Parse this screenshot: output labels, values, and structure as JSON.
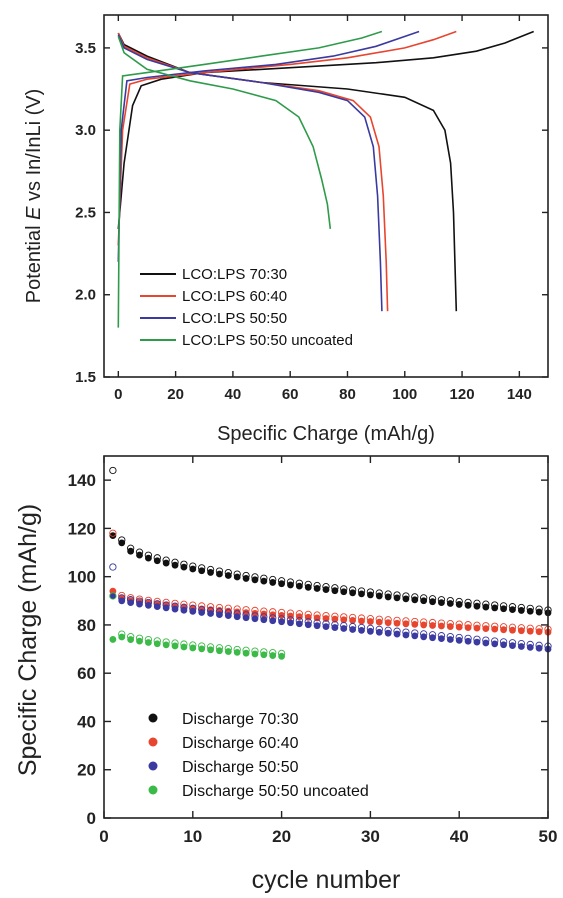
{
  "chart_data": [
    {
      "type": "line",
      "xlabel_prefix": "Specific Charge (mAh/g)",
      "ylabel": {
        "before": "Potential ",
        "italic": "E",
        "after": " vs In/InLi (V)"
      },
      "xlim": [
        -5,
        150
      ],
      "ylim": [
        1.5,
        3.7
      ],
      "xticks": [
        0,
        20,
        40,
        60,
        80,
        100,
        120,
        140
      ],
      "yticks": [
        1.5,
        2.0,
        2.5,
        3.0,
        3.5
      ],
      "ytick_labels": [
        "1.5",
        "2.0",
        "2.5",
        "3.0",
        "3.5"
      ],
      "legend_position": "lower-left",
      "series": [
        {
          "name": "LCO:LPS 70:30",
          "color": "#111111",
          "charge": [
            [
              0,
              2.4
            ],
            [
              2,
              2.8
            ],
            [
              5,
              3.15
            ],
            [
              8,
              3.27
            ],
            [
              15,
              3.31
            ],
            [
              30,
              3.35
            ],
            [
              60,
              3.38
            ],
            [
              90,
              3.41
            ],
            [
              110,
              3.44
            ],
            [
              125,
              3.48
            ],
            [
              135,
              3.53
            ],
            [
              145,
              3.6
            ]
          ],
          "discharge": [
            [
              0,
              3.59
            ],
            [
              2,
              3.52
            ],
            [
              10,
              3.45
            ],
            [
              25,
              3.35
            ],
            [
              50,
              3.29
            ],
            [
              80,
              3.25
            ],
            [
              100,
              3.2
            ],
            [
              110,
              3.12
            ],
            [
              114,
              3.0
            ],
            [
              116,
              2.8
            ],
            [
              117,
              2.5
            ],
            [
              117.5,
              2.2
            ],
            [
              118,
              1.9
            ]
          ]
        },
        {
          "name": "LCO:LPS 60:40",
          "color": "#e8452f",
          "charge": [
            [
              0,
              2.3
            ],
            [
              1.5,
              3.0
            ],
            [
              4,
              3.28
            ],
            [
              10,
              3.31
            ],
            [
              30,
              3.35
            ],
            [
              60,
              3.4
            ],
            [
              80,
              3.44
            ],
            [
              100,
              3.5
            ],
            [
              110,
              3.55
            ],
            [
              118,
              3.6
            ]
          ],
          "discharge": [
            [
              0,
              3.59
            ],
            [
              2,
              3.51
            ],
            [
              10,
              3.44
            ],
            [
              25,
              3.35
            ],
            [
              50,
              3.29
            ],
            [
              70,
              3.24
            ],
            [
              82,
              3.18
            ],
            [
              88,
              3.08
            ],
            [
              91,
              2.9
            ],
            [
              92.5,
              2.6
            ],
            [
              93.5,
              2.2
            ],
            [
              94,
              1.9
            ]
          ]
        },
        {
          "name": "LCO:LPS 50:50",
          "color": "#3a3aa0",
          "charge": [
            [
              0,
              2.2
            ],
            [
              1,
              3.0
            ],
            [
              3,
              3.3
            ],
            [
              10,
              3.32
            ],
            [
              30,
              3.36
            ],
            [
              55,
              3.4
            ],
            [
              75,
              3.45
            ],
            [
              90,
              3.51
            ],
            [
              105,
              3.6
            ]
          ],
          "discharge": [
            [
              0,
              3.58
            ],
            [
              2,
              3.5
            ],
            [
              10,
              3.43
            ],
            [
              25,
              3.35
            ],
            [
              50,
              3.29
            ],
            [
              70,
              3.23
            ],
            [
              80,
              3.18
            ],
            [
              86,
              3.08
            ],
            [
              89,
              2.9
            ],
            [
              90.5,
              2.6
            ],
            [
              91.5,
              2.2
            ],
            [
              92,
              1.9
            ]
          ]
        },
        {
          "name": "LCO:LPS 50:50 uncoated",
          "color": "#2e9b4a",
          "charge": [
            [
              0,
              1.8
            ],
            [
              0.5,
              3.0
            ],
            [
              1.5,
              3.33
            ],
            [
              10,
              3.35
            ],
            [
              30,
              3.4
            ],
            [
              50,
              3.45
            ],
            [
              70,
              3.5
            ],
            [
              85,
              3.56
            ],
            [
              92,
              3.6
            ]
          ],
          "discharge": [
            [
              0,
              3.57
            ],
            [
              2,
              3.47
            ],
            [
              10,
              3.37
            ],
            [
              25,
              3.3
            ],
            [
              40,
              3.25
            ],
            [
              55,
              3.18
            ],
            [
              63,
              3.08
            ],
            [
              68,
              2.9
            ],
            [
              71,
              2.7
            ],
            [
              73,
              2.55
            ],
            [
              74,
              2.4
            ]
          ]
        }
      ]
    },
    {
      "type": "scatter",
      "xlabel": "cycle number",
      "ylabel": "Specific Charge (mAh/g)",
      "xlim": [
        0,
        50
      ],
      "ylim": [
        0,
        150
      ],
      "xticks": [
        0,
        10,
        20,
        30,
        40,
        50
      ],
      "yticks": [
        0,
        20,
        40,
        60,
        80,
        100,
        120,
        140
      ],
      "legend_position": "lower-left",
      "series": [
        {
          "name": "Discharge 70:30",
          "color": "#111111",
          "count": 50,
          "first": 117,
          "second": 114,
          "last": 85,
          "curve": 0.55,
          "charge_first": 144
        },
        {
          "name": "Discharge 60:40",
          "color": "#e8452f",
          "count": 50,
          "first": 94,
          "second": 91,
          "last": 77,
          "curve": 0.7,
          "charge_first": 118
        },
        {
          "name": "Discharge 50:50",
          "color": "#3a3aa0",
          "count": 50,
          "first": 92,
          "second": 90,
          "last": 70,
          "curve": 0.85,
          "charge_first": 104
        },
        {
          "name": "Discharge 50:50 uncoated",
          "color": "#3cba48",
          "count": 20,
          "first": 74,
          "second": 75,
          "last": 67,
          "curve": 0.7,
          "charge_first": 92
        }
      ]
    }
  ]
}
